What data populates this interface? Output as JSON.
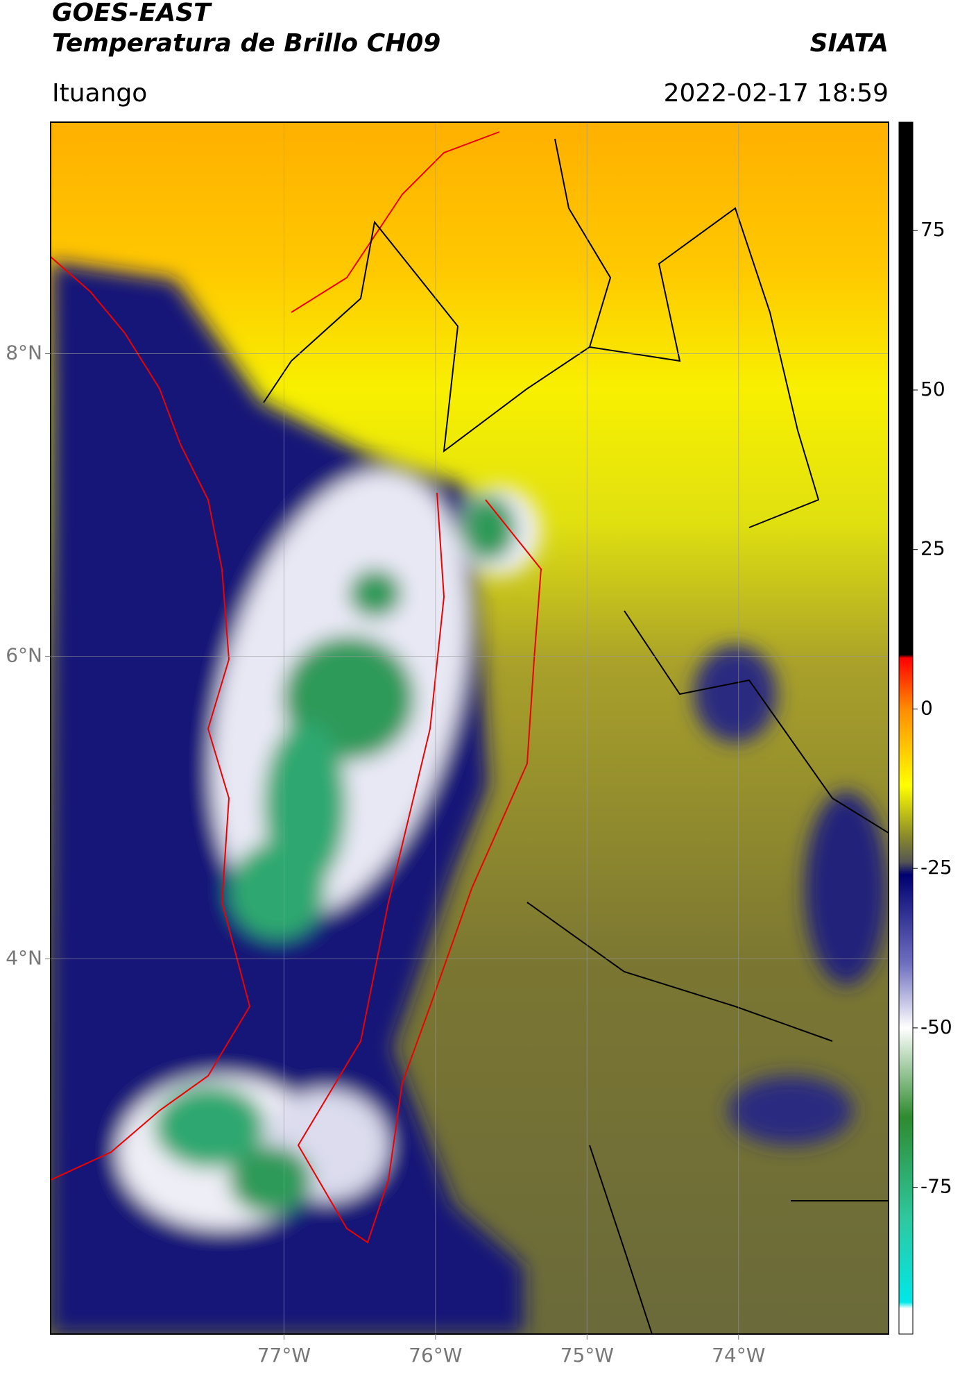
{
  "header": {
    "satellite": "GOES-EAST",
    "product": "Temperatura de Brillo CH09",
    "brand": "SIATA",
    "location": "Ituango",
    "datetime": "2022-02-17 18:59"
  },
  "map": {
    "xlim": [
      -78.54,
      -73.01
    ],
    "ylim": [
      1.52,
      9.53
    ],
    "xticks": [
      {
        "value": -77,
        "label": "77°W"
      },
      {
        "value": -76,
        "label": "76°W"
      },
      {
        "value": -75,
        "label": "75°W"
      },
      {
        "value": -74,
        "label": "74°W"
      }
    ],
    "yticks": [
      {
        "value": 8,
        "label": "8°N"
      },
      {
        "value": 6,
        "label": "6°N"
      },
      {
        "value": 4,
        "label": "4°N"
      }
    ],
    "grid": true
  },
  "colorbar": {
    "lim": [
      -98,
      92
    ],
    "ticks": [
      75,
      50,
      25,
      0,
      -25,
      -50,
      -75
    ],
    "stops": [
      {
        "value": 92,
        "color": "#000000"
      },
      {
        "value": 8.5,
        "color": "#000000"
      },
      {
        "value": 8,
        "color": "#ff0000"
      },
      {
        "value": 0,
        "color": "#ff8c00"
      },
      {
        "value": -12,
        "color": "#ffff00"
      },
      {
        "value": -20,
        "color": "#8a8a2a"
      },
      {
        "value": -24,
        "color": "#555555"
      },
      {
        "value": -26,
        "color": "#000070"
      },
      {
        "value": -40,
        "color": "#7070c0"
      },
      {
        "value": -50,
        "color": "#ffffff"
      },
      {
        "value": -64,
        "color": "#2e8b2e"
      },
      {
        "value": -80,
        "color": "#2ec8a0"
      },
      {
        "value": -93,
        "color": "#00e8e8"
      },
      {
        "value": -94,
        "color": "#ffffff"
      },
      {
        "value": -98,
        "color": "#ffffff"
      }
    ]
  }
}
